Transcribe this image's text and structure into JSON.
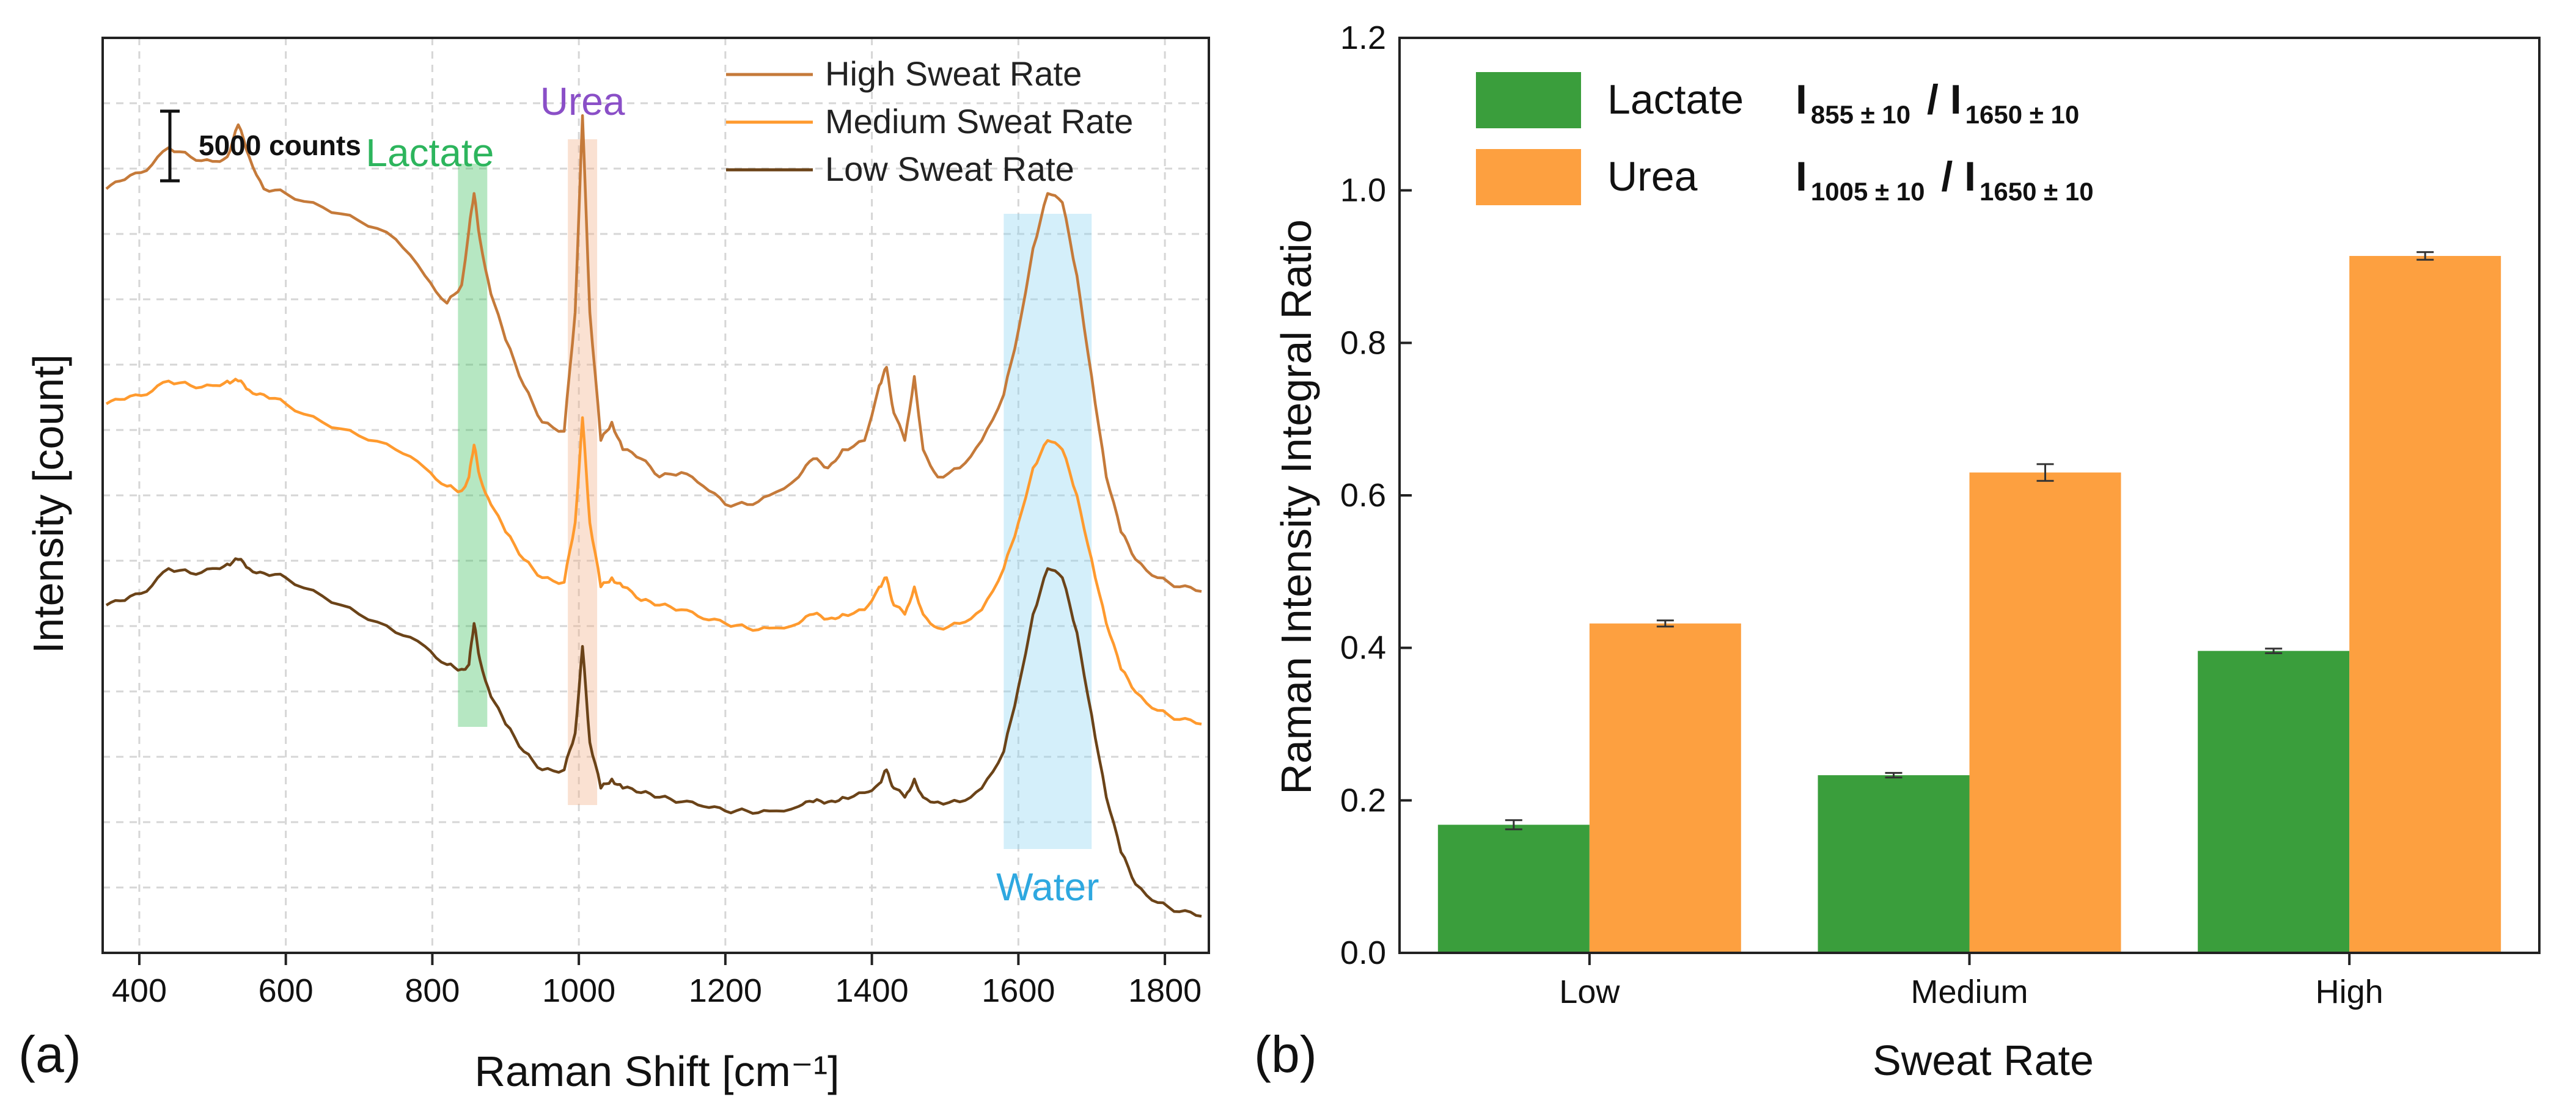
{
  "chart_data": [
    {
      "panel_label": "(a)",
      "type": "line",
      "xlabel": "Raman Shift [cm⁻¹]",
      "ylabel": "Intensity [count]",
      "xlim": [
        350,
        1860
      ],
      "x_ticks": [
        "400",
        "600",
        "800",
        "1000",
        "1200",
        "1400",
        "1600",
        "1800"
      ],
      "grid": true,
      "scale_bar": "5000 counts",
      "legend_position": "top-right",
      "series": [
        {
          "name": "High Sweat Rate",
          "color": "#c57a3a",
          "x": [
            355,
            380,
            410,
            440,
            470,
            500,
            520,
            535,
            550,
            570,
            600,
            650,
            700,
            750,
            790,
            820,
            840,
            850,
            857,
            865,
            880,
            900,
            925,
            950,
            980,
            995,
            1005,
            1015,
            1030,
            1045,
            1060,
            1085,
            1110,
            1140,
            1170,
            1200,
            1230,
            1260,
            1300,
            1320,
            1340,
            1360,
            1390,
            1410,
            1420,
            1430,
            1445,
            1458,
            1470,
            1490,
            1520,
            1550,
            1580,
            1600,
            1620,
            1640,
            1660,
            1680,
            1700,
            1720,
            1740,
            1760,
            1790,
            1820,
            1850
          ],
          "y": [
            0.835,
            0.845,
            0.855,
            0.88,
            0.87,
            0.865,
            0.87,
            0.905,
            0.87,
            0.835,
            0.83,
            0.815,
            0.8,
            0.78,
            0.74,
            0.71,
            0.73,
            0.79,
            0.83,
            0.78,
            0.72,
            0.67,
            0.62,
            0.58,
            0.57,
            0.7,
            0.915,
            0.7,
            0.56,
            0.58,
            0.55,
            0.54,
            0.52,
            0.525,
            0.51,
            0.49,
            0.49,
            0.5,
            0.52,
            0.54,
            0.53,
            0.55,
            0.56,
            0.62,
            0.64,
            0.59,
            0.56,
            0.63,
            0.55,
            0.52,
            0.53,
            0.56,
            0.61,
            0.68,
            0.77,
            0.83,
            0.82,
            0.74,
            0.63,
            0.52,
            0.46,
            0.43,
            0.41,
            0.4,
            0.395
          ]
        },
        {
          "name": "Medium Sweat Rate",
          "color": "#ff9a2e",
          "x": [
            355,
            380,
            410,
            440,
            470,
            500,
            520,
            535,
            550,
            570,
            600,
            650,
            700,
            750,
            790,
            820,
            840,
            850,
            857,
            865,
            880,
            900,
            925,
            950,
            980,
            995,
            1005,
            1015,
            1030,
            1045,
            1060,
            1085,
            1110,
            1140,
            1170,
            1200,
            1230,
            1260,
            1300,
            1320,
            1340,
            1360,
            1390,
            1410,
            1420,
            1430,
            1445,
            1458,
            1470,
            1490,
            1520,
            1550,
            1580,
            1600,
            1620,
            1640,
            1660,
            1680,
            1700,
            1720,
            1740,
            1760,
            1790,
            1820,
            1850
          ],
          "y": [
            0.6,
            0.605,
            0.61,
            0.625,
            0.62,
            0.62,
            0.625,
            0.625,
            0.615,
            0.61,
            0.6,
            0.58,
            0.565,
            0.55,
            0.53,
            0.51,
            0.505,
            0.52,
            0.555,
            0.52,
            0.49,
            0.46,
            0.43,
            0.41,
            0.405,
            0.47,
            0.585,
            0.47,
            0.4,
            0.41,
            0.4,
            0.385,
            0.38,
            0.375,
            0.365,
            0.36,
            0.355,
            0.355,
            0.36,
            0.37,
            0.365,
            0.37,
            0.375,
            0.4,
            0.41,
            0.38,
            0.37,
            0.4,
            0.37,
            0.355,
            0.36,
            0.375,
            0.42,
            0.47,
            0.53,
            0.56,
            0.55,
            0.5,
            0.43,
            0.36,
            0.31,
            0.285,
            0.265,
            0.255,
            0.25
          ]
        },
        {
          "name": "Low Sweat Rate",
          "color": "#6b4318",
          "x": [
            355,
            380,
            410,
            440,
            470,
            500,
            520,
            535,
            550,
            570,
            600,
            650,
            700,
            750,
            790,
            820,
            840,
            850,
            857,
            865,
            880,
            900,
            925,
            950,
            980,
            995,
            1005,
            1015,
            1030,
            1045,
            1060,
            1085,
            1110,
            1140,
            1170,
            1200,
            1230,
            1260,
            1300,
            1320,
            1340,
            1360,
            1390,
            1410,
            1420,
            1430,
            1445,
            1458,
            1470,
            1490,
            1520,
            1550,
            1580,
            1600,
            1620,
            1640,
            1660,
            1680,
            1700,
            1720,
            1740,
            1760,
            1790,
            1820,
            1850
          ],
          "y": [
            0.38,
            0.385,
            0.395,
            0.42,
            0.415,
            0.42,
            0.425,
            0.43,
            0.42,
            0.415,
            0.41,
            0.39,
            0.37,
            0.35,
            0.335,
            0.315,
            0.31,
            0.315,
            0.36,
            0.32,
            0.28,
            0.25,
            0.22,
            0.2,
            0.2,
            0.24,
            0.335,
            0.23,
            0.18,
            0.19,
            0.18,
            0.175,
            0.17,
            0.165,
            0.16,
            0.155,
            0.155,
            0.155,
            0.16,
            0.165,
            0.165,
            0.17,
            0.175,
            0.185,
            0.2,
            0.18,
            0.17,
            0.19,
            0.17,
            0.165,
            0.165,
            0.18,
            0.22,
            0.29,
            0.37,
            0.42,
            0.41,
            0.35,
            0.26,
            0.17,
            0.11,
            0.075,
            0.055,
            0.045,
            0.04
          ]
        }
      ],
      "bands": [
        {
          "label": "Lactate",
          "center": 855,
          "range": [
            835,
            875
          ],
          "color": "#3fbf5f",
          "label_color": "#2db55d"
        },
        {
          "label": "Urea",
          "center": 1005,
          "range": [
            985,
            1025
          ],
          "color": "#f2b08a",
          "label_color": "#8a4fc7"
        },
        {
          "label": "Water",
          "center": 1640,
          "range": [
            1580,
            1700
          ],
          "color": "#8fd4f2",
          "label_color": "#2ea8e0"
        }
      ]
    },
    {
      "panel_label": "(b)",
      "type": "bar",
      "xlabel": "Sweat Rate",
      "ylabel": "Raman Intensity Integral Ratio",
      "categories": [
        "Low",
        "Medium",
        "High"
      ],
      "ylim": [
        0,
        1.2
      ],
      "y_ticks": [
        "0.0",
        "0.2",
        "0.4",
        "0.6",
        "0.8",
        "1.0",
        "1.2"
      ],
      "legend_position": "top-left",
      "series": [
        {
          "name": "Lactate",
          "formula_main": [
            "I",
            "/ I"
          ],
          "formula_sub": [
            "855 ± 10",
            "1650 ± 10"
          ],
          "color": "#3a9e3c",
          "values": [
            0.168,
            0.233,
            0.396
          ],
          "errors": [
            0.006,
            0.003,
            0.003
          ]
        },
        {
          "name": "Urea",
          "formula_main": [
            "I",
            "/ I"
          ],
          "formula_sub": [
            "1005 ± 10",
            "1650 ± 10"
          ],
          "color": "#fda040",
          "values": [
            0.432,
            0.63,
            0.914
          ],
          "errors": [
            0.004,
            0.011,
            0.005
          ]
        }
      ]
    }
  ]
}
